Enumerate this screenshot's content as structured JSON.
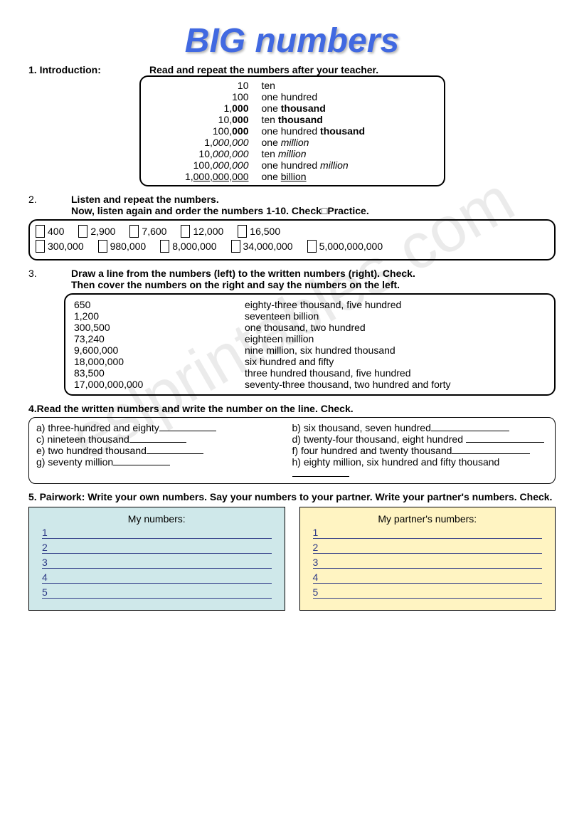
{
  "watermark": "eslprintables.com",
  "title": "BIG numbers",
  "section1": {
    "num": "1.",
    "label": "Introduction:",
    "instruction": "Read and repeat the numbers after your teacher.",
    "rows": [
      {
        "n": "10",
        "w": "ten"
      },
      {
        "n": "100",
        "w": "one hundred"
      },
      {
        "n_pre": "1,",
        "n_bold": "000",
        "w_pre": "one ",
        "w_bold": "thousand"
      },
      {
        "n_pre": "10,",
        "n_bold": "000",
        "w_pre": "ten ",
        "w_bold": "thousand"
      },
      {
        "n_pre": "100,",
        "n_bold": "000",
        "w_pre": "one hundred ",
        "w_bold": "thousand"
      },
      {
        "n_pre": "1,",
        "n_ital": "000,000",
        "w_pre": "one ",
        "w_ital": "million"
      },
      {
        "n_pre": "10,",
        "n_ital": "000,000",
        "w_pre": "ten ",
        "w_ital": "million"
      },
      {
        "n_pre": "100,",
        "n_ital": "000,000",
        "w_pre": "one hundred ",
        "w_ital": "million"
      },
      {
        "n_pre": "1,",
        "n_uline": "000,000,000",
        "w_pre": "one ",
        "w_uline": "billion"
      }
    ]
  },
  "section2": {
    "num": "2.",
    "line1": "Listen and repeat the numbers.",
    "line2": "Now, listen again and order the numbers 1-10. Check□Practice.",
    "items_r1": [
      "400",
      "2,900",
      "7,600",
      "12,000",
      "16,500"
    ],
    "items_r2": [
      "300,000",
      "980,000",
      "8,000,000",
      "34,000,000",
      "5,000,000,000"
    ]
  },
  "section3": {
    "num": "3.",
    "line1": "Draw a line from the numbers (left) to the written numbers (right). Check.",
    "line2": "Then cover the numbers on the right and say the numbers on the left.",
    "rows": [
      {
        "l": "650",
        "r": "eighty-three thousand, five hundred"
      },
      {
        "l": "1,200",
        "r": "seventeen billion"
      },
      {
        "l": "300,500",
        "r": "one thousand, two hundred"
      },
      {
        "l": "73,240",
        "r": "eighteen million"
      },
      {
        "l": "9,600,000",
        "r": "nine million, six hundred thousand"
      },
      {
        "l": "18,000,000",
        "r": "six hundred and fifty"
      },
      {
        "l": "83,500",
        "r": "three hundred thousand, five hundred"
      },
      {
        "l": "17,000,000,000",
        "r": "seventy-three thousand, two hundred and forty"
      }
    ]
  },
  "section4": {
    "title": "4.Read the written numbers and write the number on the line. Check.",
    "a": "a) three-hundred and eighty",
    "b": "b) six thousand, seven hundred",
    "c": "c) nineteen thousand",
    "d": "d) twenty-four thousand, eight hundred",
    "e": "e) two hundred thousand",
    "f": "f) four hundred and twenty thousand",
    "g": "g) seventy million",
    "h": "h) eighty million, six hundred and fifty thousand"
  },
  "section5": {
    "title": "5. Pairwork: Write your own numbers. Say your numbers to your partner. Write your partner's numbers.  Check.",
    "left_hdr": "My numbers:",
    "right_hdr": "My partner's numbers:",
    "lines": [
      "1",
      "2",
      "3",
      "4",
      "5"
    ]
  }
}
